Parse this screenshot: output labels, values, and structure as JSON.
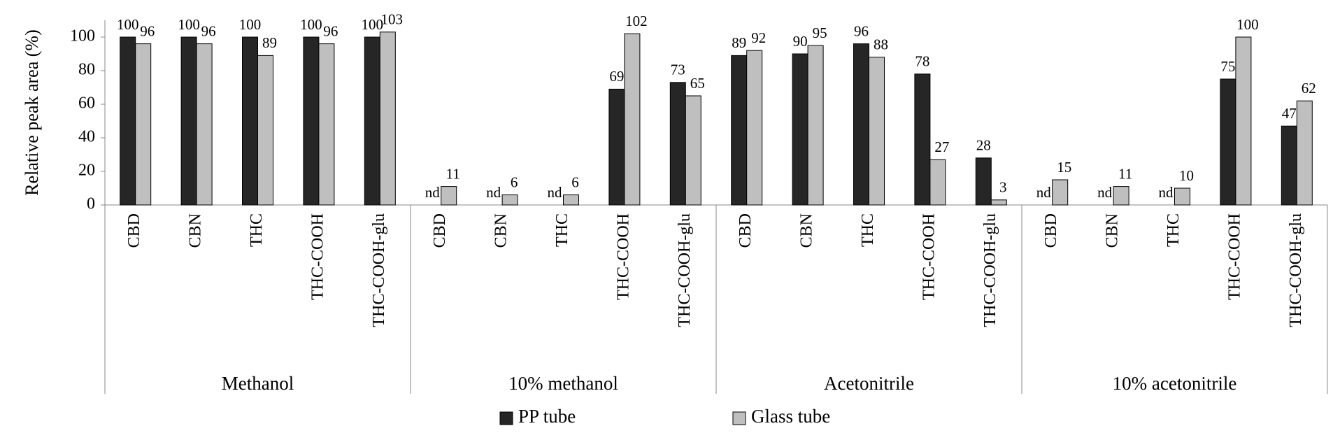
{
  "chart_data": {
    "type": "bar",
    "y_label": "Relative peak area (%)",
    "groups": [
      {
        "name": "Methanol",
        "categories": [
          "CBD",
          "CBN",
          "THC",
          "THC-COOH",
          "THC-COOH-glu"
        ]
      },
      {
        "name": "10% methanol",
        "categories": [
          "CBD",
          "CBN",
          "THC",
          "THC-COOH",
          "THC-COOH-glu"
        ]
      },
      {
        "name": "Acetonitrile",
        "categories": [
          "CBD",
          "CBN",
          "THC",
          "THC-COOH",
          "THC-COOH-glu"
        ]
      },
      {
        "name": "10% acetonitrile",
        "categories": [
          "CBD",
          "CBN",
          "THC",
          "THC-COOH",
          "THC-COOH-glu"
        ]
      }
    ],
    "series": [
      {
        "name": "PP tube",
        "color": "#262626",
        "values": [
          100,
          100,
          100,
          100,
          100,
          null,
          null,
          null,
          69,
          73,
          89,
          90,
          96,
          78,
          28,
          null,
          null,
          null,
          75,
          47
        ],
        "value_labels": [
          "100",
          "100",
          "100",
          "100",
          "100",
          "nd",
          "nd",
          "nd",
          "69",
          "73",
          "89",
          "90",
          "96",
          "78",
          "28",
          "nd",
          "nd",
          "nd",
          "75",
          "47"
        ]
      },
      {
        "name": "Glass tube",
        "color": "#bfbfbf",
        "values": [
          96,
          96,
          89,
          96,
          103,
          11,
          6,
          6,
          102,
          65,
          92,
          95,
          88,
          27,
          3,
          15,
          11,
          10,
          100,
          62
        ],
        "value_labels": [
          "96",
          "96",
          "89",
          "96",
          "103",
          "11",
          "6",
          "6",
          "102",
          "65",
          "92",
          "95",
          "88",
          "27",
          "3",
          "15",
          "11",
          "10",
          "100",
          "62"
        ]
      }
    ],
    "ylim": [
      0,
      110
    ],
    "yticks": [
      0,
      20,
      40,
      60,
      80,
      100
    ]
  }
}
